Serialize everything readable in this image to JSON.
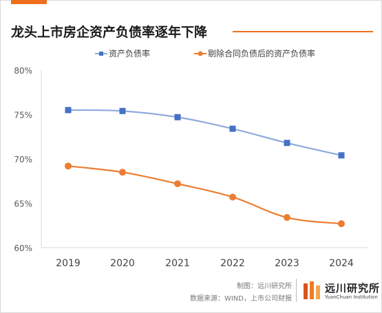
{
  "header": {
    "title": "龙头上市房企资产负债率逐年下降",
    "accent_color": "#ef6f1c"
  },
  "chart_data": {
    "type": "line",
    "categories": [
      "2019",
      "2020",
      "2021",
      "2022",
      "2023",
      "2024"
    ],
    "ylim": [
      60,
      80
    ],
    "yticks": [
      "60%",
      "65%",
      "70%",
      "75%",
      "80%"
    ],
    "legend_position": "top",
    "grid": false,
    "series": [
      {
        "name": "资产负债率",
        "values": [
          75.5,
          75.4,
          74.7,
          73.4,
          71.8,
          70.4
        ],
        "color": "#8eaadb",
        "marker_color": "#4472c4",
        "marker": "square"
      },
      {
        "name": "剔除合同负债后的资产负债率",
        "values": [
          69.2,
          68.5,
          67.2,
          65.7,
          63.4,
          62.7
        ],
        "color": "#ed7d31",
        "marker_color": "#ed7d31",
        "marker": "circle"
      }
    ]
  },
  "footer": {
    "made_by": "制图：远川研究所",
    "source": "数据来源：WIND，上市公司财报",
    "brand_cn": "远川研究所",
    "brand_en": "YuanChuan Institution"
  }
}
